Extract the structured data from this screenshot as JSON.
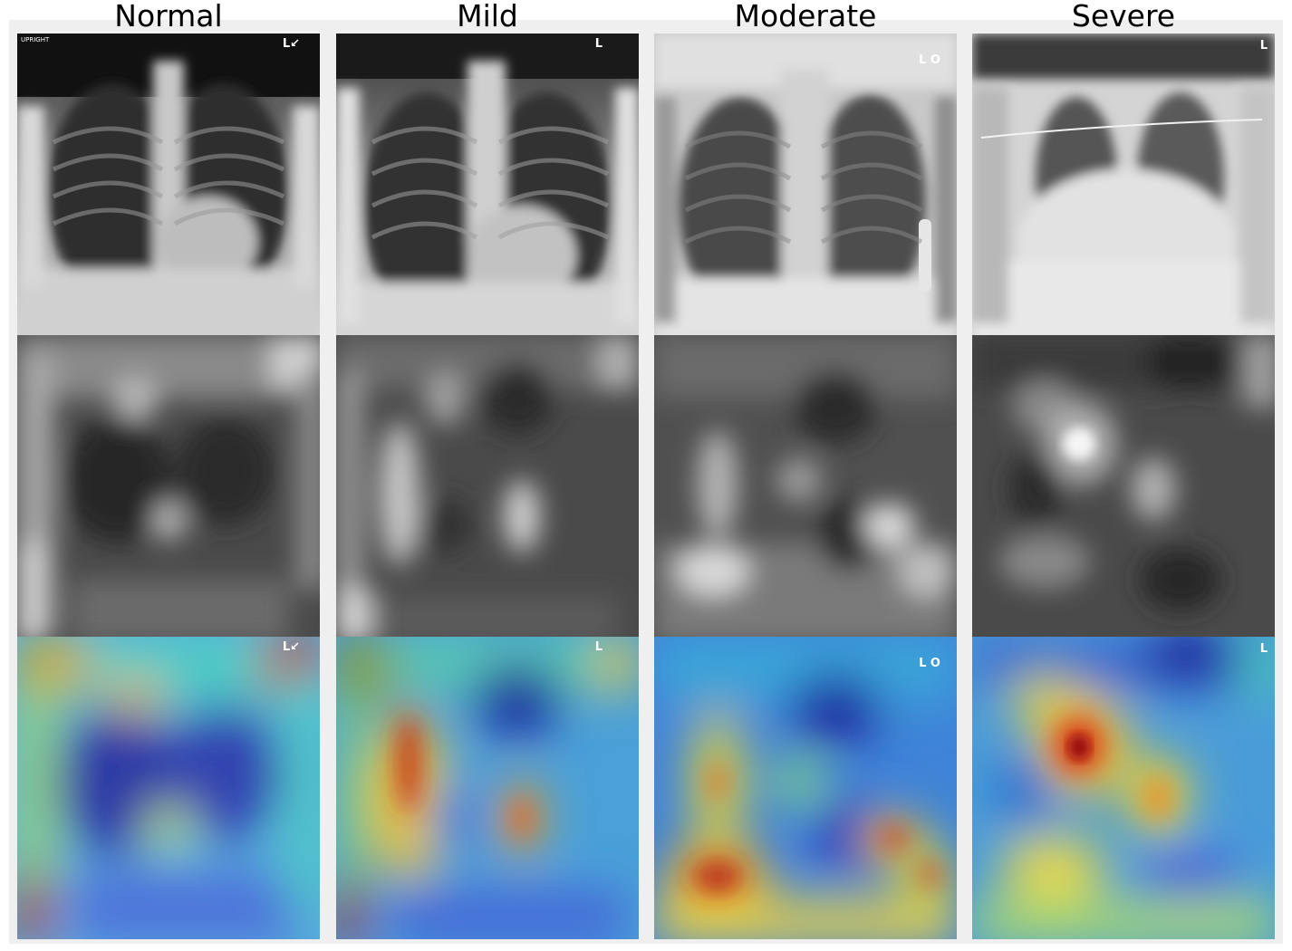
{
  "columns": [
    {
      "key": "normal",
      "title": "Normal",
      "marker_tr": "L↙",
      "marker_tl": "UPRIGHT"
    },
    {
      "key": "mild",
      "title": "Mild",
      "marker_tr": "L",
      "marker_tl": ""
    },
    {
      "key": "moderate",
      "title": "Moderate",
      "marker_tr": "L O",
      "marker_tl": ""
    },
    {
      "key": "severe",
      "title": "Severe",
      "marker_tr": "L",
      "marker_tl": ""
    }
  ],
  "rows": [
    "xray",
    "activation-map",
    "heatmap-overlay"
  ],
  "colors": {
    "figure_background": "#efefef",
    "heatmap_low": "#1a2a9e",
    "heatmap_mid": "#2fd6e0",
    "heatmap_high": "#c21a12"
  }
}
